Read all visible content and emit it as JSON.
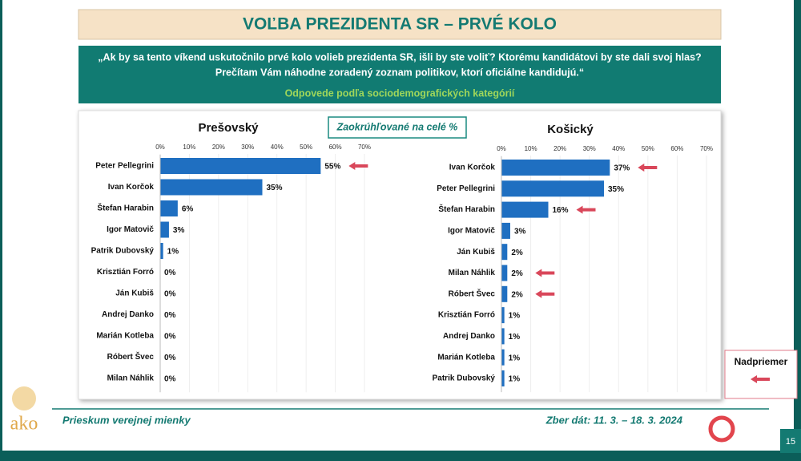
{
  "slide": {
    "title": "VOĽBA PREZIDENTA SR – PRVÉ KOLO",
    "question_1": "„Ak by sa tento víkend uskutočnilo prvé kolo volieb prezidenta SR, išli by ste voliť? Ktorému kandidátovi by ste dali svoj hlas?",
    "question_2": "Prečítam Vám náhodne zoradený zoznam politikov, ktorí oficiálne kandidujú.“",
    "subtitle": "Odpovede podľa sociodemografických kategórií",
    "note": "Zaokrúhľované na celé %",
    "legend": "Nadpriemer",
    "footer_left": "Prieskum verejnej mienky",
    "footer_right": "Zber dát: 11. 3. – 18. 3. 2024",
    "page": "15",
    "logo": "ako"
  },
  "chart_data": [
    {
      "type": "bar",
      "orientation": "horizontal",
      "title": "Prešovský",
      "color": "#1f6fc1",
      "grid": true,
      "categories": [
        "Peter Pellegrini",
        "Ivan Korčok",
        "Štefan Harabin",
        "Igor Matovič",
        "Patrik Dubovský",
        "Krisztián Forró",
        "Ján Kubiš",
        "Andrej Danko",
        "Marián Kotleba",
        "Róbert Švec",
        "Milan Náhlik"
      ],
      "values": [
        55,
        35,
        6,
        3,
        1,
        0,
        0,
        0,
        0,
        0,
        0
      ],
      "value_labels": [
        "55%",
        "35%",
        "6%",
        "3%",
        "1%",
        "0%",
        "0%",
        "0%",
        "0%",
        "0%",
        "0%"
      ],
      "above_average": [
        true,
        false,
        false,
        false,
        false,
        false,
        false,
        false,
        false,
        false,
        false
      ],
      "xlim": [
        0,
        70
      ],
      "xticks": [
        {
          "value": 0,
          "label": "0%"
        },
        {
          "value": 10,
          "label": "10%"
        },
        {
          "value": 20,
          "label": "20%"
        },
        {
          "value": 30,
          "label": "30%"
        },
        {
          "value": 40,
          "label": "40%"
        },
        {
          "value": 50,
          "label": "50%"
        },
        {
          "value": 60,
          "label": "60%"
        },
        {
          "value": 70,
          "label": "70%"
        }
      ]
    },
    {
      "type": "bar",
      "orientation": "horizontal",
      "title": "Košický",
      "color": "#1f6fc1",
      "grid": true,
      "categories": [
        "Ivan Korčok",
        "Peter Pellegrini",
        "Štefan Harabin",
        "Igor Matovič",
        "Ján Kubiš",
        "Milan Náhlik",
        "Róbert Švec",
        "Krisztián Forró",
        "Andrej Danko",
        "Marián Kotleba",
        "Patrik Dubovský"
      ],
      "values": [
        37,
        35,
        16,
        3,
        2,
        2,
        2,
        1,
        1,
        1,
        1
      ],
      "value_labels": [
        "37%",
        "35%",
        "16%",
        "3%",
        "2%",
        "2%",
        "2%",
        "1%",
        "1%",
        "1%",
        "1%"
      ],
      "above_average": [
        true,
        false,
        true,
        false,
        false,
        true,
        true,
        false,
        false,
        false,
        false
      ],
      "xlim": [
        0,
        70
      ],
      "xticks": [
        {
          "value": 0,
          "label": "0%"
        },
        {
          "value": 10,
          "label": "10%"
        },
        {
          "value": 20,
          "label": "20%"
        },
        {
          "value": 30,
          "label": "30%"
        },
        {
          "value": 40,
          "label": "40%"
        },
        {
          "value": 50,
          "label": "50%"
        },
        {
          "value": 60,
          "label": "60%"
        },
        {
          "value": 70,
          "label": "70%"
        }
      ]
    }
  ]
}
